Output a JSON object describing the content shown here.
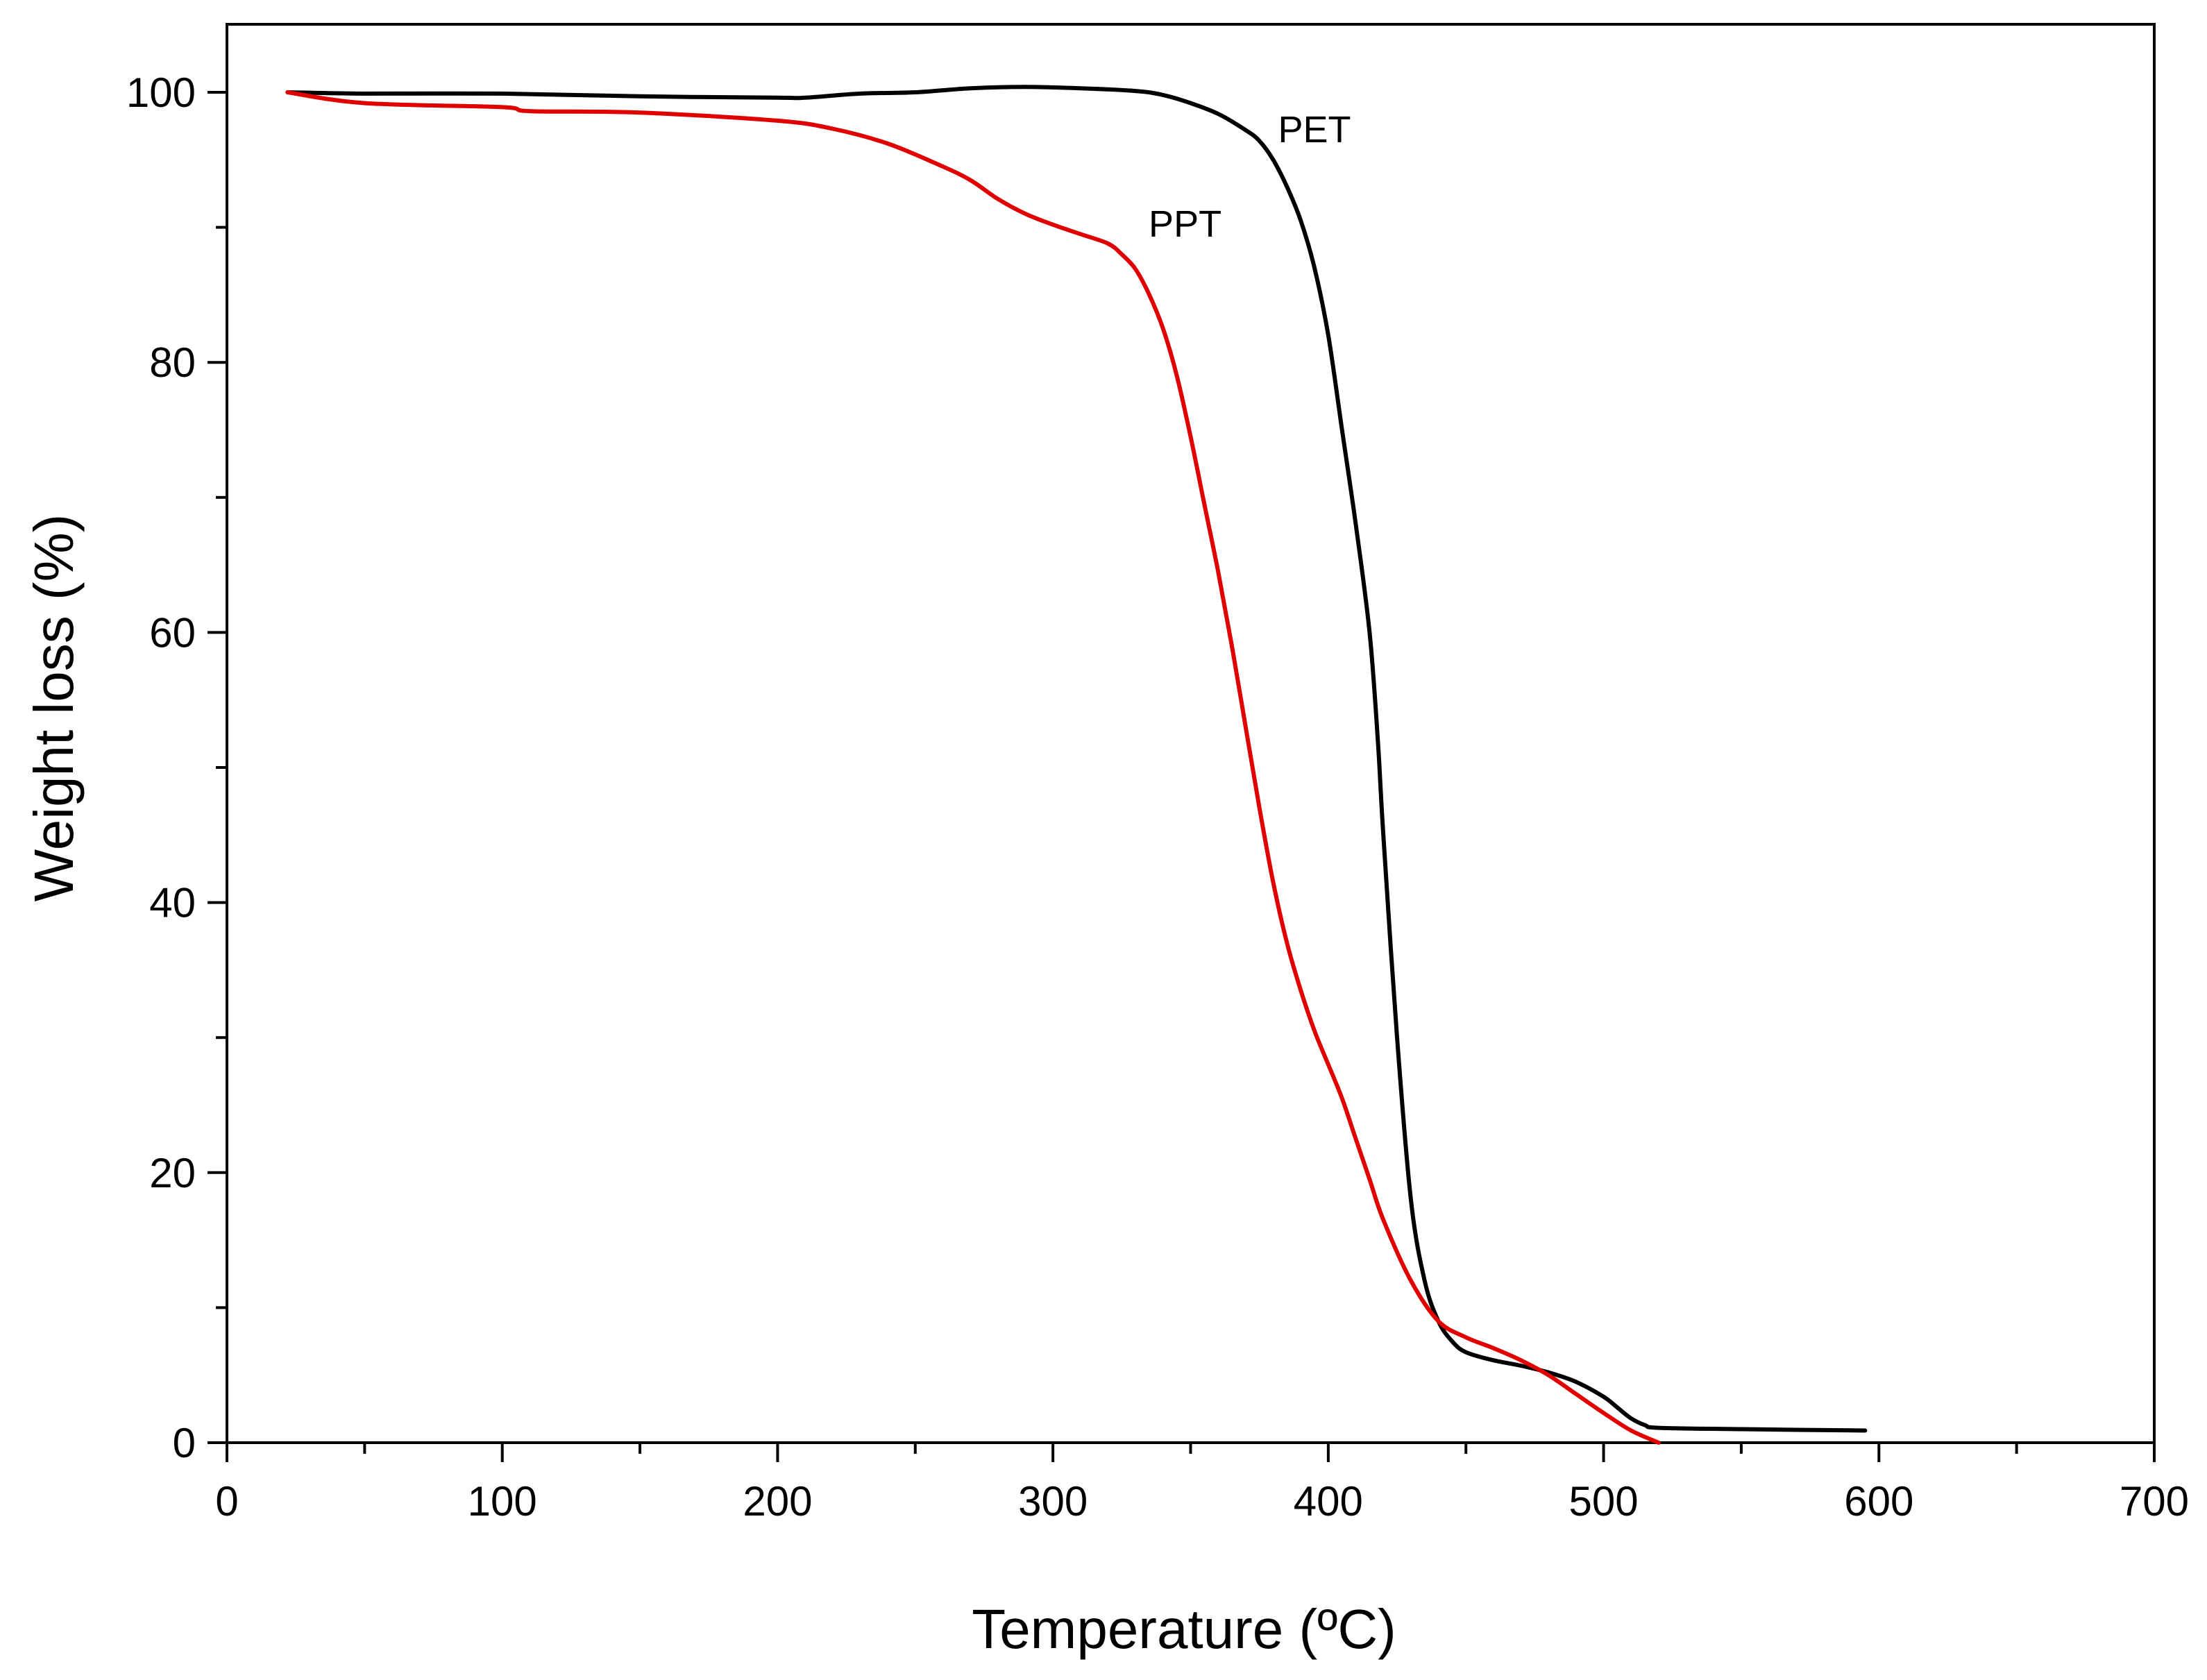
{
  "chart_data": {
    "type": "line",
    "title": "",
    "xlabel": "Temperature (ºC)",
    "ylabel": "Weight loss (%)",
    "xlim": [
      0,
      700
    ],
    "ylim": [
      0,
      105
    ],
    "x_ticks": [
      0,
      100,
      200,
      300,
      400,
      500,
      600,
      700
    ],
    "y_ticks": [
      0,
      20,
      40,
      60,
      80,
      100
    ],
    "x_minor_step": 50,
    "y_minor_step": 10,
    "grid": false,
    "legend": "none",
    "series": [
      {
        "name": "PET",
        "color": "#000000",
        "x": [
          22,
          50,
          100,
          150,
          200,
          210,
          230,
          250,
          270,
          290,
          310,
          330,
          340,
          350,
          360,
          370,
          375,
          380,
          385,
          390,
          395,
          400,
          405,
          410,
          415,
          418,
          420,
          425,
          430,
          435,
          440,
          445,
          450,
          460,
          470,
          480,
          490,
          500,
          505,
          510,
          515,
          520,
          550,
          595
        ],
        "y": [
          100,
          99.9,
          99.9,
          99.7,
          99.6,
          99.6,
          99.9,
          100.0,
          100.3,
          100.4,
          100.3,
          100.1,
          99.8,
          99.2,
          98.4,
          97.2,
          96.4,
          95.0,
          93.0,
          90.5,
          87.0,
          82.0,
          75.0,
          68.0,
          60.0,
          52.0,
          45.0,
          30.0,
          18.0,
          12.0,
          9.0,
          7.5,
          6.7,
          6.1,
          5.7,
          5.2,
          4.5,
          3.4,
          2.6,
          1.8,
          1.3,
          1.1,
          1.0,
          0.9
        ]
      },
      {
        "name": "PPT",
        "color": "#e00000",
        "x": [
          22,
          50,
          100,
          110,
          150,
          200,
          220,
          240,
          260,
          270,
          280,
          290,
          300,
          310,
          320,
          325,
          330,
          335,
          340,
          345,
          350,
          355,
          360,
          365,
          370,
          375,
          380,
          385,
          390,
          395,
          400,
          405,
          410,
          415,
          420,
          430,
          440,
          450,
          460,
          470,
          480,
          490,
          500,
          510,
          520
        ],
        "y": [
          100,
          99.2,
          98.9,
          98.6,
          98.5,
          97.9,
          97.3,
          96.2,
          94.5,
          93.5,
          92.1,
          91.0,
          90.2,
          89.5,
          88.8,
          88.0,
          86.9,
          85.0,
          82.5,
          79.0,
          74.5,
          69.5,
          64.5,
          59.0,
          53.0,
          47.0,
          41.5,
          37.0,
          33.5,
          30.5,
          28.0,
          25.5,
          22.5,
          19.5,
          16.5,
          12.0,
          9.0,
          7.8,
          7.0,
          6.1,
          5.0,
          3.6,
          2.2,
          0.9,
          0.0
        ]
      }
    ],
    "annotations": [
      {
        "text": "PET",
        "x": 395,
        "y": 96.3
      },
      {
        "text": "PPT",
        "x": 348,
        "y": 89.3
      }
    ]
  }
}
